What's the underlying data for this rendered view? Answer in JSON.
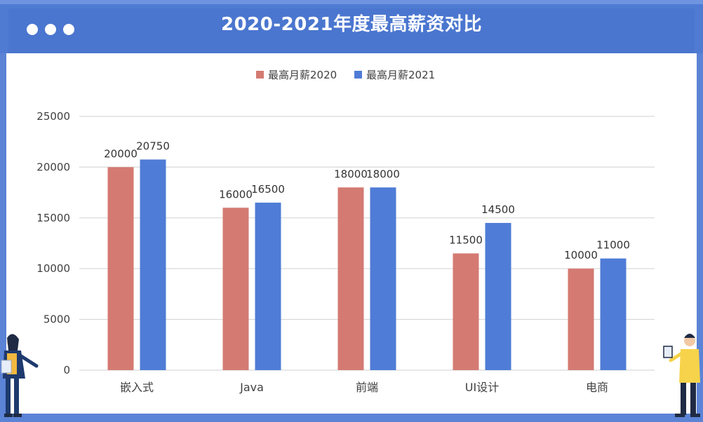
{
  "window": {
    "title": "2020-2021年度最高薪资对比"
  },
  "colors": {
    "header": "#4a76cf",
    "frame": "#5b83d6",
    "series_2020": "#d47a72",
    "series_2021": "#4f7cd6",
    "grid": "#d9d9d9"
  },
  "chart_data": {
    "type": "bar",
    "title": "2020-2021年度最高薪资对比",
    "categories": [
      "嵌入式",
      "Java",
      "前端",
      "UI设计",
      "电商"
    ],
    "series": [
      {
        "name": "最高月薪2020",
        "values": [
          20000,
          16000,
          18000,
          11500,
          10000
        ]
      },
      {
        "name": "最高月薪2021",
        "values": [
          20750,
          16500,
          18000,
          14500,
          11000
        ]
      }
    ],
    "ylim": [
      0,
      25000
    ],
    "yticks": [
      0,
      5000,
      10000,
      15000,
      20000,
      25000
    ],
    "grid": true,
    "legend": "top",
    "data_labels": true
  }
}
